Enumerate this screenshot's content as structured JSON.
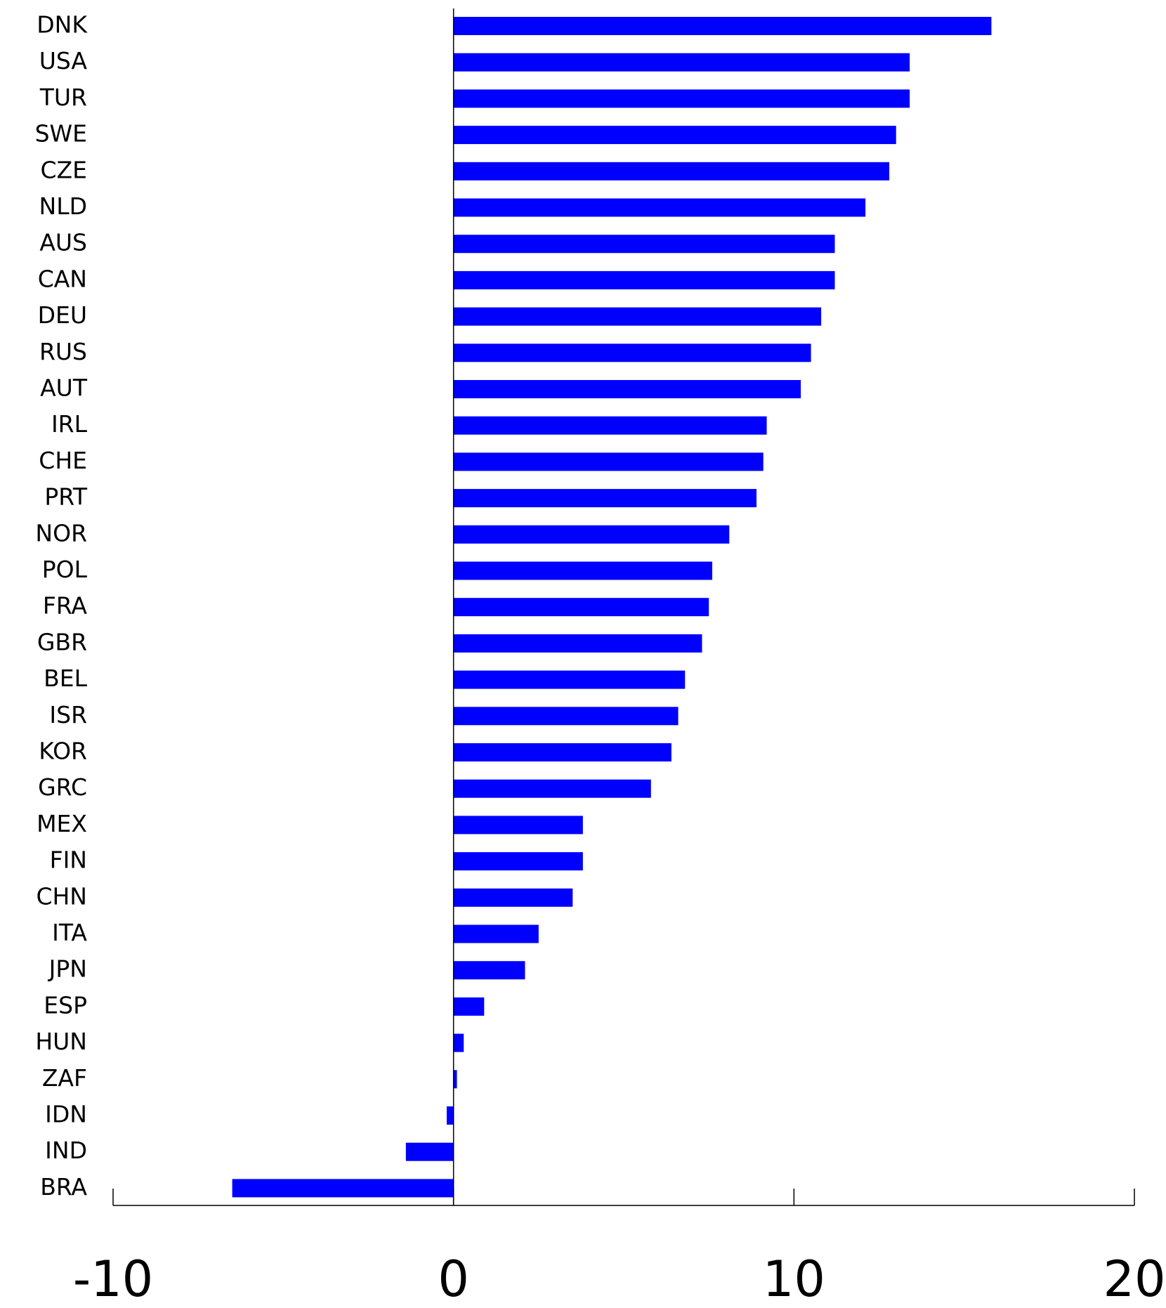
{
  "chart_data": {
    "type": "bar",
    "orientation": "horizontal",
    "categories": [
      "DNK",
      "USA",
      "TUR",
      "SWE",
      "CZE",
      "NLD",
      "AUS",
      "CAN",
      "DEU",
      "RUS",
      "AUT",
      "IRL",
      "CHE",
      "PRT",
      "NOR",
      "POL",
      "FRA",
      "GBR",
      "BEL",
      "ISR",
      "KOR",
      "GRC",
      "MEX",
      "FIN",
      "CHN",
      "ITA",
      "JPN",
      "ESP",
      "HUN",
      "ZAF",
      "IDN",
      "IND",
      "BRA"
    ],
    "values": [
      15.8,
      13.4,
      13.4,
      13.0,
      12.8,
      12.1,
      11.2,
      11.2,
      10.8,
      10.5,
      10.2,
      9.2,
      9.1,
      8.9,
      8.1,
      7.6,
      7.5,
      7.3,
      6.8,
      6.6,
      6.4,
      5.8,
      3.8,
      3.8,
      3.5,
      2.5,
      2.1,
      0.9,
      0.3,
      0.1,
      -0.2,
      -1.4,
      -6.5
    ],
    "color": "#0000ff",
    "xlim": [
      -10,
      20
    ],
    "xticks": [
      -10,
      0,
      10,
      20
    ]
  }
}
